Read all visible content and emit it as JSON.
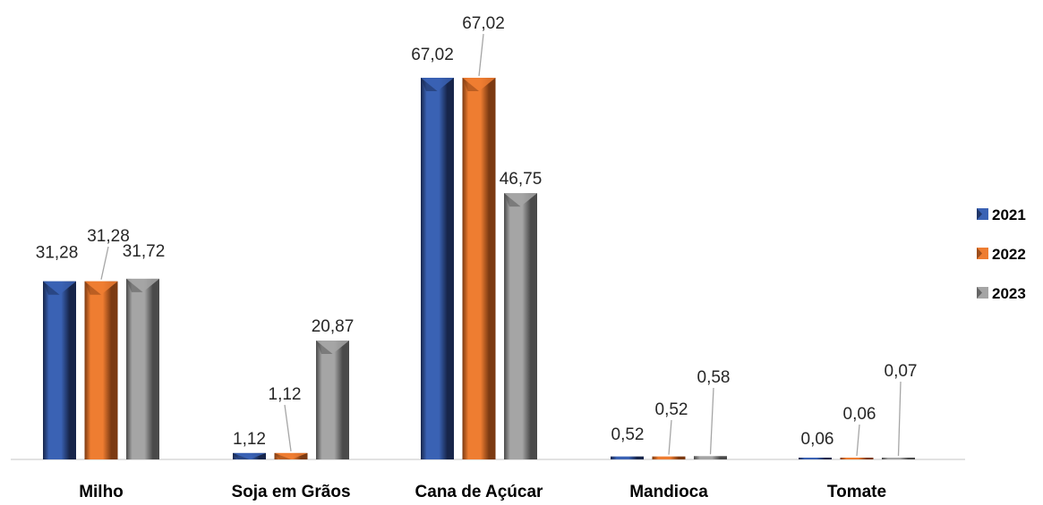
{
  "chart_data": {
    "type": "bar",
    "categories": [
      "Milho",
      "Soja em Grãos",
      "Cana de Açúcar",
      "Mandioca",
      "Tomate"
    ],
    "series": [
      {
        "name": "2021",
        "values": [
          31.28,
          1.12,
          67.02,
          0.52,
          0.06
        ],
        "labels": [
          "31,28",
          "1,12",
          "67,02",
          "0,52",
          "0,06"
        ],
        "color": "#3a62b4",
        "dark": "#17254a"
      },
      {
        "name": "2022",
        "values": [
          31.28,
          1.12,
          67.02,
          0.52,
          0.06
        ],
        "labels": [
          "31,28",
          "1,12",
          "67,02",
          "0,52",
          "0,06"
        ],
        "color": "#ee7d31",
        "dark": "#7c3a12"
      },
      {
        "name": "2023",
        "values": [
          31.72,
          20.87,
          46.75,
          0.58,
          0.07
        ],
        "labels": [
          "31,72",
          "20,87",
          "46,75",
          "0,58",
          "0,07"
        ],
        "color": "#a5a5a5",
        "dark": "#4a4a4a"
      }
    ],
    "title": "",
    "xlabel": "",
    "ylabel": "",
    "ylim": [
      0,
      67.02
    ],
    "grid": false,
    "legend": "right"
  }
}
